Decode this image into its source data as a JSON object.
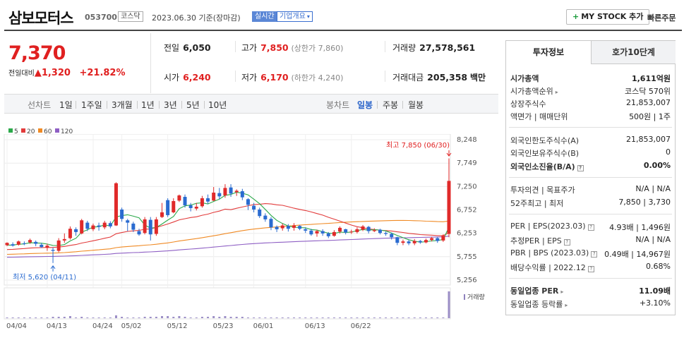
{
  "header": {
    "stock_name": "삼보모터스",
    "stock_code": "053700",
    "market_tag": "코스닥",
    "date_text": "2023.06.30 기준(장마감)",
    "live_tag": "실시간",
    "overview_tag": "기업개요",
    "mystock_label": "MY STOCK 추가",
    "quick_order_label": "빠른주문"
  },
  "price": {
    "current": "7,370",
    "change_label": "전일대비",
    "change_arrow": "▲",
    "change_value": "1,320",
    "change_pct": "+21.82%"
  },
  "stats": {
    "prev_label": "전일",
    "prev_value": "6,050",
    "high_label": "고가",
    "high_value": "7,850",
    "high_note": "(상한가 7,860)",
    "volume_label": "거래량",
    "volume_value": "27,578,561",
    "open_label": "시가",
    "open_value": "6,240",
    "low_label": "저가",
    "low_value": "6,170",
    "low_note": "(하한가 4,240)",
    "amount_label": "거래대금",
    "amount_value": "205,358",
    "amount_unit": "백만"
  },
  "period_tabs": [
    "선차트",
    "1일",
    "1주일",
    "3개월",
    "1년",
    "3년",
    "5년",
    "10년"
  ],
  "type_tabs": [
    "봉차트",
    "일봉",
    "주봉",
    "월봉"
  ],
  "active_type": "일봉",
  "legend": [
    {
      "label": "5",
      "color": "#2ba94a"
    },
    {
      "label": "20",
      "color": "#e23b3b"
    },
    {
      "label": "60",
      "color": "#f08a24"
    },
    {
      "label": "120",
      "color": "#8e5fc4"
    }
  ],
  "chart_data": {
    "type": "candlestick",
    "y_ticks": [
      "8,248",
      "7,749",
      "7,250",
      "6,752",
      "6,253",
      "5,755",
      "5,256"
    ],
    "ylim": [
      5256,
      8248
    ],
    "x_ticks": [
      "04/04",
      "04/13",
      "04/24",
      "05/02",
      "05/12",
      "05/23",
      "06/01",
      "06/13",
      "06/22"
    ],
    "high_annotation": "최고 7,850 (06/30)",
    "low_annotation": "최저 5,620 (04/11)",
    "volume_label": "거래량",
    "candles": [
      [
        6000,
        6050,
        5980,
        6060
      ],
      [
        6020,
        5990,
        5970,
        6060
      ],
      [
        6010,
        6080,
        5990,
        6100
      ],
      [
        6040,
        6030,
        6000,
        6080
      ],
      [
        6060,
        6110,
        6030,
        6140
      ],
      [
        6070,
        6030,
        5980,
        6100
      ],
      [
        6010,
        5960,
        5940,
        6050
      ],
      [
        5950,
        5990,
        5880,
        6030
      ],
      [
        5900,
        5880,
        5620,
        5950
      ],
      [
        5880,
        6100,
        5850,
        6150
      ],
      [
        6100,
        6130,
        6050,
        6250
      ],
      [
        6150,
        6350,
        6120,
        6400
      ],
      [
        6340,
        6280,
        6200,
        6380
      ],
      [
        6250,
        6530,
        6230,
        6560
      ],
      [
        6480,
        6350,
        6300,
        6520
      ],
      [
        6340,
        6420,
        6300,
        6460
      ],
      [
        6420,
        6390,
        6310,
        6480
      ],
      [
        6380,
        6480,
        6340,
        6520
      ],
      [
        6470,
        6400,
        6360,
        6510
      ],
      [
        6420,
        7320,
        6410,
        7340
      ],
      [
        6760,
        6560,
        6500,
        6800
      ],
      [
        6530,
        6480,
        6300,
        6560
      ],
      [
        6460,
        6330,
        6280,
        6500
      ],
      [
        6300,
        6230,
        6200,
        6350
      ],
      [
        6260,
        6550,
        6230,
        6600
      ],
      [
        6540,
        6230,
        6100,
        6600
      ],
      [
        6240,
        6550,
        6200,
        6600
      ],
      [
        6600,
        6700,
        6580,
        6900
      ],
      [
        6960,
        6640,
        6600,
        7000
      ],
      [
        6700,
        6940,
        6680,
        7000
      ],
      [
        6950,
        7060,
        6920,
        7080
      ],
      [
        7030,
        6850,
        6800,
        7080
      ],
      [
        6850,
        6790,
        6720,
        6900
      ],
      [
        6780,
        6820,
        6740,
        6900
      ],
      [
        6830,
        7000,
        6800,
        7050
      ],
      [
        7000,
        6930,
        6880,
        7080
      ],
      [
        6950,
        7120,
        6940,
        7240
      ],
      [
        7110,
        7040,
        6980,
        7220
      ],
      [
        7060,
        7220,
        7010,
        7300
      ],
      [
        7230,
        7100,
        7030,
        7300
      ],
      [
        7130,
        7160,
        7050,
        7190
      ],
      [
        7150,
        7020,
        6960,
        7200
      ],
      [
        6980,
        6860,
        6750,
        7000
      ],
      [
        6840,
        6760,
        6700,
        6900
      ],
      [
        6760,
        6620,
        6580,
        6800
      ],
      [
        6630,
        6550,
        6500,
        6680
      ],
      [
        6560,
        6380,
        6320,
        6600
      ],
      [
        6390,
        6340,
        6280,
        6420
      ],
      [
        6360,
        6420,
        6310,
        6460
      ],
      [
        6410,
        6350,
        6290,
        6450
      ],
      [
        6370,
        6420,
        6310,
        6470
      ],
      [
        6410,
        6350,
        6320,
        6430
      ],
      [
        6340,
        6310,
        6260,
        6380
      ],
      [
        6310,
        6230,
        6200,
        6350
      ],
      [
        6250,
        6300,
        6180,
        6330
      ],
      [
        6300,
        6250,
        6200,
        6340
      ],
      [
        6250,
        6190,
        6150,
        6280
      ],
      [
        6200,
        6280,
        6180,
        6320
      ],
      [
        6290,
        6370,
        6250,
        6400
      ],
      [
        6340,
        6270,
        6230,
        6350
      ],
      [
        6280,
        6290,
        6240,
        6330
      ],
      [
        6280,
        6340,
        6250,
        6380
      ],
      [
        6330,
        6400,
        6300,
        6430
      ],
      [
        6390,
        6300,
        6250,
        6410
      ],
      [
        6300,
        6320,
        6280,
        6360
      ],
      [
        6330,
        6260,
        6230,
        6350
      ],
      [
        6260,
        6240,
        6200,
        6290
      ],
      [
        6240,
        6170,
        6120,
        6270
      ],
      [
        6170,
        6050,
        6000,
        6180
      ],
      [
        6050,
        6080,
        6000,
        6120
      ],
      [
        6080,
        6040,
        6000,
        6110
      ],
      [
        6040,
        6090,
        6000,
        6130
      ],
      [
        6090,
        6060,
        6030,
        6110
      ],
      [
        6060,
        6110,
        6040,
        6140
      ],
      [
        6110,
        6150,
        6080,
        6180
      ],
      [
        6150,
        6090,
        6050,
        6170
      ],
      [
        6100,
        6200,
        6070,
        6230
      ],
      [
        6240,
        7370,
        6170,
        7850
      ]
    ]
  },
  "side_tabs": {
    "active": "투자정보",
    "other": "호가10단계"
  },
  "info": {
    "market_cap_label": "시가총액",
    "market_cap_value": "1,611억원",
    "rank_label": "시가총액순위",
    "rank_value": "코스닥 570위",
    "shares_label": "상장주식수",
    "shares_value": "21,853,007",
    "face_label": "액면가 | 매매단위",
    "face_value": "500원 | 1주",
    "foreign_limit_label": "외국인한도주식수(A)",
    "foreign_limit_value": "21,853,007",
    "foreign_hold_label": "외국인보유주식수(B)",
    "foreign_hold_value": "0",
    "foreign_ratio_label": "외국인소진율(B/A)",
    "foreign_ratio_value": "0.00%",
    "opinion_label": "투자의견 | 목표주가",
    "opinion_value": "N/A | N/A",
    "week52_label": "52주최고 | 최저",
    "week52_value": "7,850 | 3,730",
    "per_label": "PER | EPS(2023.03)",
    "per_value": "4.93배 | 1,496원",
    "est_label": "추정PER | EPS",
    "est_value": "N/A | N/A",
    "pbr_label": "PBR | BPS (2023.03)",
    "pbr_value": "0.49배 | 14,967원",
    "div_label": "배당수익률 | 2022.12",
    "div_value": "0.68%",
    "ind_per_label": "동일업종 PER",
    "ind_per_value": "11.09배",
    "ind_rate_label": "동일업종 등락률",
    "ind_rate_value": "+3.10%"
  }
}
